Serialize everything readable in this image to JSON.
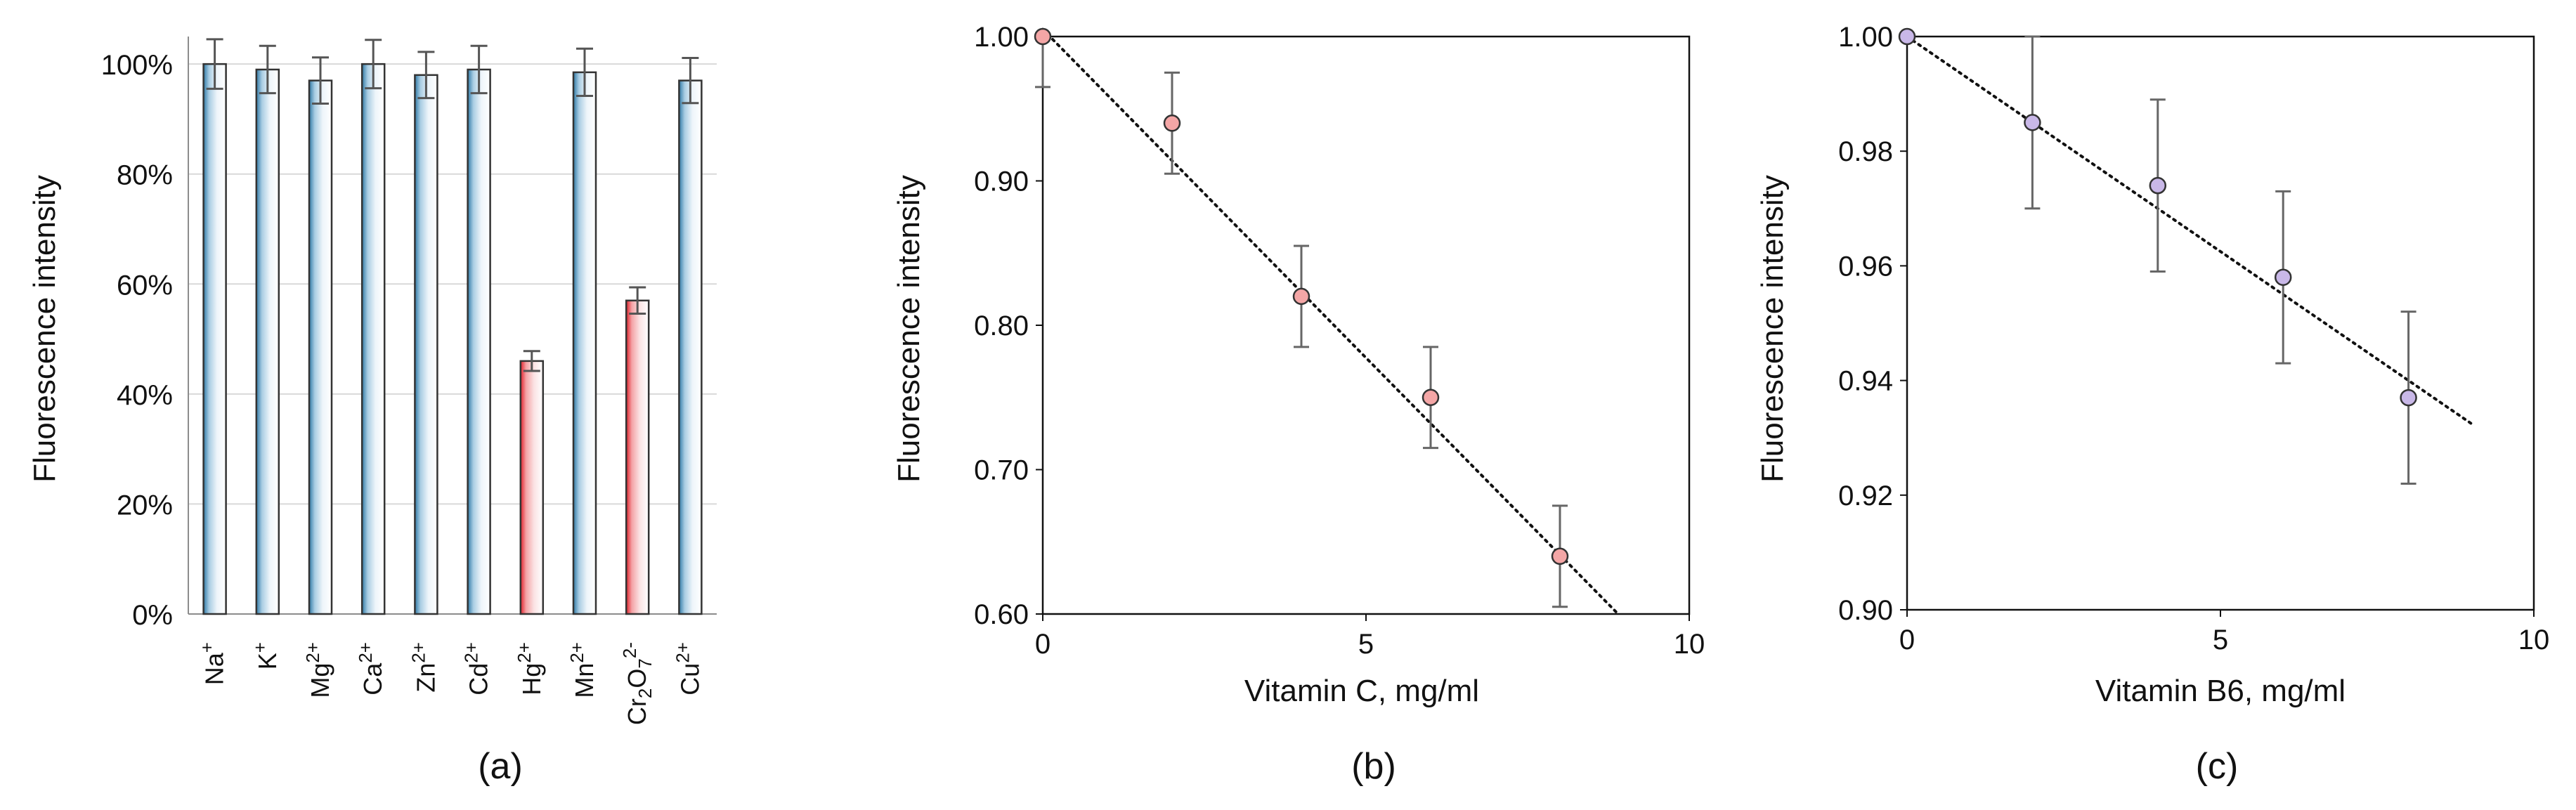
{
  "chart_data": [
    {
      "type": "bar",
      "panel_label": "(a)",
      "title": "",
      "xlabel": "",
      "ylabel": "Fluorescence intensity",
      "ylim": [
        0,
        105
      ],
      "yticks": [
        "0%",
        "20%",
        "40%",
        "60%",
        "80%",
        "100%"
      ],
      "ytick_values": [
        0,
        20,
        40,
        60,
        80,
        100
      ],
      "categories": [
        {
          "label": "Na",
          "sup": "+"
        },
        {
          "label": "K",
          "sup": "+"
        },
        {
          "label": "Mg",
          "sup": "2+"
        },
        {
          "label": "Ca",
          "sup": "2+"
        },
        {
          "label": "Zn",
          "sup": "2+"
        },
        {
          "label": "Cd",
          "sup": "2+"
        },
        {
          "label": "Hg",
          "sup": "2+"
        },
        {
          "label": "Mn",
          "sup": "2+"
        },
        {
          "label": "Cr",
          "sub1": "2",
          "mid": "O",
          "sub2": "7",
          "sup": "2-"
        },
        {
          "label": "Cu",
          "sup": "2+"
        }
      ],
      "values": [
        100,
        99,
        97,
        100,
        98,
        99,
        46,
        98.5,
        57,
        97
      ],
      "errors": [
        4.5,
        4.3,
        4.2,
        4.4,
        4.2,
        4.3,
        1.8,
        4.3,
        2.4,
        4.1
      ],
      "highlight_color": "#e0202a",
      "normal_color": "#2f79a6"
    },
    {
      "type": "scatter",
      "panel_label": "(b)",
      "title": "",
      "xlabel": "Vitamin C, mg/ml",
      "ylabel": "Fluorescence intensity",
      "xlim": [
        0,
        10
      ],
      "ylim": [
        0.6,
        1.0
      ],
      "xticks": [
        "0",
        "5",
        "10"
      ],
      "xtick_values": [
        0,
        5,
        10
      ],
      "yticks": [
        "0.60",
        "0.70",
        "0.80",
        "0.90",
        "1.00"
      ],
      "ytick_values": [
        0.6,
        0.7,
        0.8,
        0.9,
        1.0
      ],
      "x": [
        0,
        2,
        4,
        6,
        8
      ],
      "y": [
        1.0,
        0.94,
        0.82,
        0.75,
        0.64
      ],
      "errors": [
        0.035,
        0.035,
        0.035,
        0.035,
        0.035
      ],
      "trendline": {
        "x1": 0,
        "y1": 1.005,
        "x2": 8.9,
        "y2": 0.6
      },
      "marker_color": "#f4a6a6"
    },
    {
      "type": "scatter",
      "panel_label": "(c)",
      "title": "",
      "xlabel": "Vitamin B6, mg/ml",
      "ylabel": "Fluorescence intensity",
      "xlim": [
        0,
        10
      ],
      "ylim": [
        0.9,
        1.0
      ],
      "xticks": [
        "0",
        "5",
        "10"
      ],
      "xtick_values": [
        0,
        5,
        10
      ],
      "yticks": [
        "0.90",
        "0.92",
        "0.94",
        "0.96",
        "0.98",
        "1.00"
      ],
      "ytick_values": [
        0.9,
        0.92,
        0.94,
        0.96,
        0.98,
        1.0
      ],
      "x": [
        0,
        2,
        4,
        6,
        8
      ],
      "y": [
        1.0,
        0.985,
        0.974,
        0.958,
        0.937
      ],
      "errors": [
        0,
        0.015,
        0.015,
        0.015,
        0.015
      ],
      "trendline": {
        "x1": 0,
        "y1": 1.0,
        "x2": 9,
        "y2": 0.9325
      },
      "marker_color": "#c9b8e8"
    }
  ]
}
